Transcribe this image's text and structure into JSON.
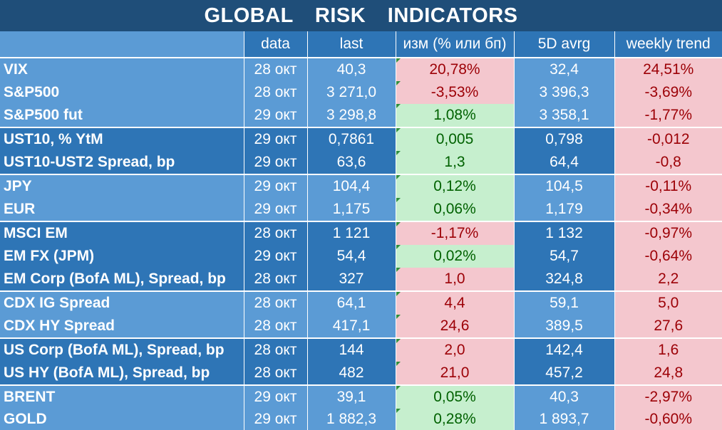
{
  "title": "GLOBAL   RISK   INDICATORS",
  "columns": [
    "",
    "data",
    "last",
    "изм (% или бп)",
    "5D avrg",
    "weekly trend"
  ],
  "rows": [
    {
      "name": "VIX",
      "date": "28 окт",
      "last": "40,3",
      "change": "20,78%",
      "change_dir": "neg",
      "avg5d": "32,4",
      "trend": "24,51%"
    },
    {
      "name": "S&P500",
      "date": "28 окт",
      "last": "3 271,0",
      "change": "-3,53%",
      "change_dir": "neg",
      "avg5d": "3 396,3",
      "trend": "-3,69%"
    },
    {
      "name": "S&P500 fut",
      "date": "29 окт",
      "last": "3 298,8",
      "change": "1,08%",
      "change_dir": "pos",
      "avg5d": "3 358,1",
      "trend": "-1,77%"
    },
    {
      "name": "UST10, % YtM",
      "date": "29 окт",
      "last": "0,7861",
      "change": "0,005",
      "change_dir": "pos",
      "avg5d": "0,798",
      "trend": "-0,012"
    },
    {
      "name": "UST10-UST2 Spread, bp",
      "date": "29 окт",
      "last": "63,6",
      "change": "1,3",
      "change_dir": "pos",
      "avg5d": "64,4",
      "trend": "-0,8"
    },
    {
      "name": "JPY",
      "date": "29 окт",
      "last": "104,4",
      "change": "0,12%",
      "change_dir": "pos",
      "avg5d": "104,5",
      "trend": "-0,11%"
    },
    {
      "name": "EUR",
      "date": "29 окт",
      "last": "1,175",
      "change": "0,06%",
      "change_dir": "pos",
      "avg5d": "1,179",
      "trend": "-0,34%"
    },
    {
      "name": "MSCI EM",
      "date": "28 окт",
      "last": "1 121",
      "change": "-1,17%",
      "change_dir": "neg",
      "avg5d": "1 132",
      "trend": "-0,97%"
    },
    {
      "name": "EM FX (JPM)",
      "date": "29 окт",
      "last": "54,4",
      "change": "0,02%",
      "change_dir": "pos",
      "avg5d": "54,7",
      "trend": "-0,64%"
    },
    {
      "name": "EM Corp (BofA ML), Spread, bp",
      "date": "28 окт",
      "last": "327",
      "change": "1,0",
      "change_dir": "neg",
      "avg5d": "324,8",
      "trend": "2,2"
    },
    {
      "name": "CDX IG Spread",
      "date": "28 окт",
      "last": "64,1",
      "change": "4,4",
      "change_dir": "neg",
      "avg5d": "59,1",
      "trend": "5,0"
    },
    {
      "name": "CDX HY Spread",
      "date": "28 окт",
      "last": "417,1",
      "change": "24,6",
      "change_dir": "neg",
      "avg5d": "389,5",
      "trend": "27,6"
    },
    {
      "name": "US Corp (BofA ML), Spread, bp",
      "date": "28 окт",
      "last": "144",
      "change": "2,0",
      "change_dir": "neg",
      "avg5d": "142,4",
      "trend": "1,6"
    },
    {
      "name": "US HY (BofA ML), Spread, bp",
      "date": "28 окт",
      "last": "482",
      "change": "21,0",
      "change_dir": "neg",
      "avg5d": "457,2",
      "trend": "24,8"
    },
    {
      "name": "BRENT",
      "date": "29 окт",
      "last": "39,1",
      "change": "0,05%",
      "change_dir": "pos",
      "avg5d": "40,3",
      "trend": "-2,97%"
    },
    {
      "name": "GOLD",
      "date": "29 окт",
      "last": "1 882,3",
      "change": "0,28%",
      "change_dir": "pos",
      "avg5d": "1 893,7",
      "trend": "-0,60%"
    }
  ],
  "colors": {
    "navy": "#1f4e79",
    "blue_dark": "#2e75b6",
    "blue_light": "#5b9bd5",
    "red_fill": "#f4c7ce",
    "red_text": "#9c0006",
    "green_fill": "#c6efce",
    "green_text": "#006100"
  }
}
